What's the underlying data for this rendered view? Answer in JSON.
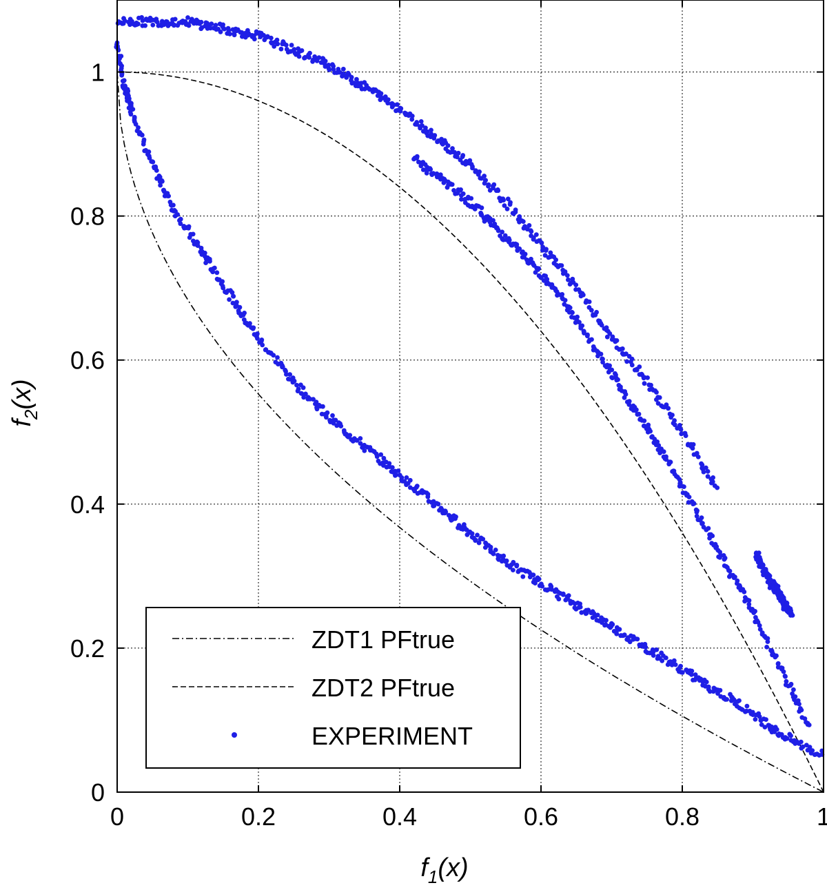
{
  "chart_data": {
    "type": "scatter",
    "xlabel": "f1(x)",
    "ylabel": "f2(x)",
    "xlabel_main": "f",
    "xlabel_sub": "1",
    "xlabel_tail": "(x)",
    "ylabel_main": "f",
    "ylabel_sub": "2",
    "ylabel_tail": "(x)",
    "xlim": [
      0,
      1
    ],
    "ylim": [
      0,
      1.1
    ],
    "x_ticks": [
      0,
      0.2,
      0.4,
      0.6,
      0.8,
      1
    ],
    "x_tick_labels": [
      "0",
      "0.2",
      "0.4",
      "0.6",
      "0.8",
      "1"
    ],
    "y_ticks": [
      0,
      0.2,
      0.4,
      0.6,
      0.8,
      1
    ],
    "y_tick_labels": [
      "0",
      "0.2",
      "0.4",
      "0.6",
      "0.8",
      "1"
    ],
    "grid": true,
    "legend_position": "bottom-left",
    "colors": {
      "experiment": "#1f1fe6",
      "reference": "#000000"
    },
    "series": [
      {
        "name": "ZDT1 PFtrue",
        "kind": "line",
        "style": "dash-dot",
        "formula": "f2 = 1 - sqrt(f1)"
      },
      {
        "name": "ZDT2 PFtrue",
        "kind": "line",
        "style": "dashed",
        "formula": "f2 = 1 - f1^2"
      },
      {
        "name": "EXPERIMENT",
        "kind": "points",
        "bands": [
          {
            "x": [
              0.0,
              0.01,
              0.02,
              0.05,
              0.08,
              0.12,
              0.16,
              0.2,
              0.25,
              0.3,
              0.35,
              0.4,
              0.45,
              0.5,
              0.55,
              0.6,
              0.65,
              0.7,
              0.75,
              0.8,
              0.85,
              0.9,
              0.94,
              1.0
            ],
            "y": [
              1.04,
              0.98,
              0.95,
              0.87,
              0.81,
              0.75,
              0.69,
              0.63,
              0.57,
              0.52,
              0.48,
              0.44,
              0.4,
              0.36,
              0.32,
              0.29,
              0.26,
              0.23,
              0.2,
              0.17,
              0.14,
              0.11,
              0.08,
              0.05
            ]
          },
          {
            "x": [
              0.0,
              0.05,
              0.1,
              0.15,
              0.2,
              0.25,
              0.3,
              0.35,
              0.4,
              0.45,
              0.5,
              0.55,
              0.6,
              0.65,
              0.7,
              0.75,
              0.8,
              0.85
            ],
            "y": [
              1.07,
              1.07,
              1.07,
              1.06,
              1.05,
              1.03,
              1.01,
              0.98,
              0.95,
              0.91,
              0.87,
              0.82,
              0.76,
              0.7,
              0.63,
              0.57,
              0.5,
              0.42
            ]
          },
          {
            "x": [
              0.42,
              0.46,
              0.5,
              0.54,
              0.58,
              0.62,
              0.66,
              0.7,
              0.74,
              0.78,
              0.82,
              0.86,
              0.9,
              0.94,
              0.98
            ],
            "y": [
              0.88,
              0.85,
              0.82,
              0.78,
              0.74,
              0.7,
              0.64,
              0.58,
              0.52,
              0.46,
              0.39,
              0.32,
              0.25,
              0.17,
              0.09
            ]
          },
          {
            "x": [
              0.905,
              0.915,
              0.925,
              0.935,
              0.945,
              0.955
            ],
            "y": [
              0.33,
              0.31,
              0.29,
              0.28,
              0.26,
              0.25
            ]
          }
        ]
      }
    ]
  }
}
